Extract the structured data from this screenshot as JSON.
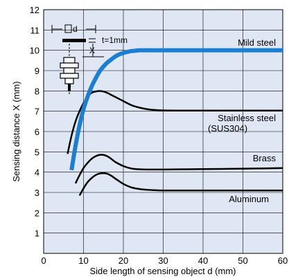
{
  "chart_data": {
    "type": "line",
    "xlabel": "Side length of sensing object d (mm)",
    "ylabel": "Sensing distance X (mm)",
    "xlim": [
      0,
      60
    ],
    "ylim": [
      0,
      12
    ],
    "xticks": [
      0,
      10,
      20,
      30,
      40,
      50,
      60
    ],
    "yticks": [
      1,
      2,
      3,
      4,
      5,
      6,
      7,
      8,
      9,
      10,
      11,
      12
    ],
    "grid": true,
    "series": [
      {
        "name": "Mild steel",
        "color": "#1a7fd0",
        "x": [
          7,
          8,
          9,
          10,
          11,
          12,
          13,
          14,
          15,
          16,
          17,
          18,
          19,
          20,
          21,
          22,
          23,
          24,
          25,
          26,
          28,
          30,
          40,
          50,
          60
        ],
        "y": [
          4.1,
          5.3,
          6.3,
          7.1,
          7.7,
          8.2,
          8.6,
          8.95,
          9.2,
          9.4,
          9.55,
          9.7,
          9.8,
          9.87,
          9.92,
          9.96,
          9.98,
          10.0,
          10.0,
          10.0,
          10.0,
          10.0,
          10.0,
          10.0,
          10.0
        ]
      },
      {
        "name": "Stainless steel\n(SUS304)",
        "color": "#000000",
        "x": [
          6,
          7,
          8,
          9,
          10,
          11,
          12,
          13,
          14,
          15,
          16,
          17,
          18,
          20,
          22,
          24,
          26,
          28,
          30,
          35,
          40,
          50,
          60
        ],
        "y": [
          4.9,
          5.8,
          6.5,
          7.0,
          7.4,
          7.7,
          7.9,
          7.97,
          8.0,
          7.97,
          7.9,
          7.8,
          7.7,
          7.5,
          7.3,
          7.18,
          7.1,
          7.06,
          7.04,
          7.03,
          7.03,
          7.03,
          7.03
        ]
      },
      {
        "name": "Brass",
        "color": "#000000",
        "x": [
          8,
          9,
          10,
          11,
          12,
          13,
          14,
          15,
          16,
          17,
          18,
          20,
          22,
          24,
          26,
          28,
          30,
          40,
          50,
          60
        ],
        "y": [
          3.45,
          3.85,
          4.2,
          4.45,
          4.65,
          4.78,
          4.85,
          4.85,
          4.78,
          4.65,
          4.5,
          4.3,
          4.18,
          4.14,
          4.13,
          4.13,
          4.13,
          4.15,
          4.17,
          4.2
        ]
      },
      {
        "name": "Aluminum",
        "color": "#000000",
        "x": [
          9,
          10,
          11,
          12,
          13,
          14,
          15,
          16,
          17,
          18,
          20,
          22,
          24,
          26,
          28,
          30,
          40,
          50,
          60
        ],
        "y": [
          2.85,
          3.2,
          3.5,
          3.7,
          3.85,
          3.93,
          3.95,
          3.92,
          3.82,
          3.68,
          3.42,
          3.25,
          3.17,
          3.13,
          3.11,
          3.1,
          3.1,
          3.1,
          3.1
        ]
      }
    ],
    "inset": {
      "dimension_label": "d",
      "thickness_label": "t=1mm",
      "distance_label": "X"
    }
  }
}
